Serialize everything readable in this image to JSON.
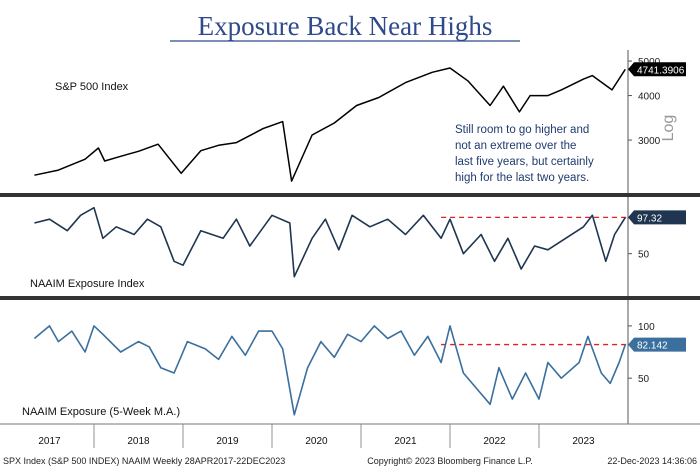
{
  "title": "Exposure Back Near Highs",
  "colors": {
    "title": "#2e4a8c",
    "price_line": "#000000",
    "naaim_line": "#1f3550",
    "ma_line": "#3a6f9e",
    "dashed": "#e02020",
    "divider": "#333333",
    "annotation": "#1f3b70"
  },
  "panels": {
    "spx": {
      "label": "S&P 500 Index",
      "last_value": "4741.3906",
      "scale_label": "Log",
      "ticks": [
        "5000",
        "4000",
        "3000"
      ],
      "annotation": [
        "Still room to go higher and",
        "not an extreme over the",
        "last five years, but certainly",
        "high for the last two years."
      ]
    },
    "naaim": {
      "label": "NAAIM Exposure Index",
      "last_value": "97.32",
      "ticks": [
        "50"
      ]
    },
    "ma": {
      "label": "NAAIM Exposure (5-Week M.A.)",
      "last_value": "82.142",
      "ticks": [
        "100",
        "50"
      ]
    }
  },
  "x_axis": {
    "years": [
      "2017",
      "2018",
      "2019",
      "2020",
      "2021",
      "2022",
      "2023"
    ]
  },
  "footer": {
    "left": "SPX Index (S&P 500 INDEX) NAAIM  Weekly 28APR2017-22DEC2023",
    "center": "Copyright© 2023 Bloomberg Finance L.P.",
    "right": "22-Dec-2023 14:36:06"
  },
  "chart_data": [
    {
      "type": "line",
      "title": "S&P 500 Index",
      "scale": "log",
      "ylim": [
        2200,
        5200
      ],
      "x": [
        2017.33,
        2017.6,
        2017.9,
        2018.05,
        2018.12,
        2018.3,
        2018.5,
        2018.72,
        2018.98,
        2019.2,
        2019.4,
        2019.6,
        2019.9,
        2020.12,
        2020.22,
        2020.45,
        2020.7,
        2020.95,
        2021.2,
        2021.5,
        2021.8,
        2022.0,
        2022.2,
        2022.45,
        2022.6,
        2022.78,
        2022.9,
        2023.1,
        2023.25,
        2023.5,
        2023.6,
        2023.82,
        2023.97
      ],
      "series": [
        {
          "values": [
            2390,
            2470,
            2650,
            2850,
            2620,
            2700,
            2790,
            2920,
            2420,
            2800,
            2900,
            2950,
            3230,
            3380,
            2300,
            3100,
            3350,
            3750,
            3950,
            4350,
            4650,
            4780,
            4400,
            3750,
            4250,
            3600,
            4000,
            4000,
            4150,
            4450,
            4550,
            4150,
            4741.39
          ]
        }
      ]
    },
    {
      "type": "line",
      "title": "NAAIM Exposure Index",
      "ylim": [
        0,
        120
      ],
      "reference_line": 97.32,
      "x": [
        2017.33,
        2017.5,
        2017.7,
        2017.85,
        2018.0,
        2018.1,
        2018.25,
        2018.45,
        2018.6,
        2018.75,
        2018.9,
        2019.0,
        2019.2,
        2019.45,
        2019.6,
        2019.75,
        2020.0,
        2020.2,
        2020.25,
        2020.45,
        2020.6,
        2020.75,
        2020.9,
        2021.1,
        2021.3,
        2021.5,
        2021.7,
        2021.9,
        2022.0,
        2022.15,
        2022.35,
        2022.5,
        2022.65,
        2022.8,
        2022.95,
        2023.1,
        2023.3,
        2023.5,
        2023.6,
        2023.75,
        2023.85,
        2023.97
      ],
      "series": [
        {
          "values": [
            90,
            95,
            80,
            100,
            110,
            70,
            85,
            75,
            95,
            85,
            40,
            35,
            80,
            70,
            95,
            60,
            100,
            90,
            20,
            70,
            95,
            55,
            100,
            85,
            95,
            75,
            100,
            70,
            95,
            50,
            75,
            40,
            70,
            30,
            60,
            55,
            70,
            85,
            100,
            40,
            75,
            97.32
          ]
        }
      ]
    },
    {
      "type": "line",
      "title": "NAAIM Exposure (5-Week M.A.)",
      "ylim": [
        10,
        120
      ],
      "reference_line": 82.142,
      "x": [
        2017.33,
        2017.5,
        2017.6,
        2017.75,
        2017.9,
        2018.0,
        2018.1,
        2018.3,
        2018.5,
        2018.62,
        2018.75,
        2018.9,
        2019.05,
        2019.25,
        2019.4,
        2019.55,
        2019.7,
        2019.85,
        2020.0,
        2020.12,
        2020.25,
        2020.4,
        2020.55,
        2020.7,
        2020.85,
        2021.0,
        2021.15,
        2021.3,
        2021.45,
        2021.6,
        2021.75,
        2021.9,
        2022.0,
        2022.15,
        2022.3,
        2022.45,
        2022.55,
        2022.7,
        2022.85,
        2023.0,
        2023.1,
        2023.25,
        2023.45,
        2023.55,
        2023.7,
        2023.8,
        2023.9,
        2023.97
      ],
      "series": [
        {
          "values": [
            88,
            100,
            85,
            95,
            75,
            100,
            92,
            75,
            85,
            80,
            60,
            55,
            85,
            78,
            68,
            90,
            72,
            95,
            95,
            78,
            15,
            60,
            85,
            70,
            92,
            85,
            100,
            88,
            95,
            72,
            90,
            65,
            100,
            55,
            40,
            25,
            60,
            30,
            55,
            30,
            65,
            50,
            65,
            90,
            55,
            45,
            65,
            82.142
          ]
        }
      ]
    }
  ]
}
